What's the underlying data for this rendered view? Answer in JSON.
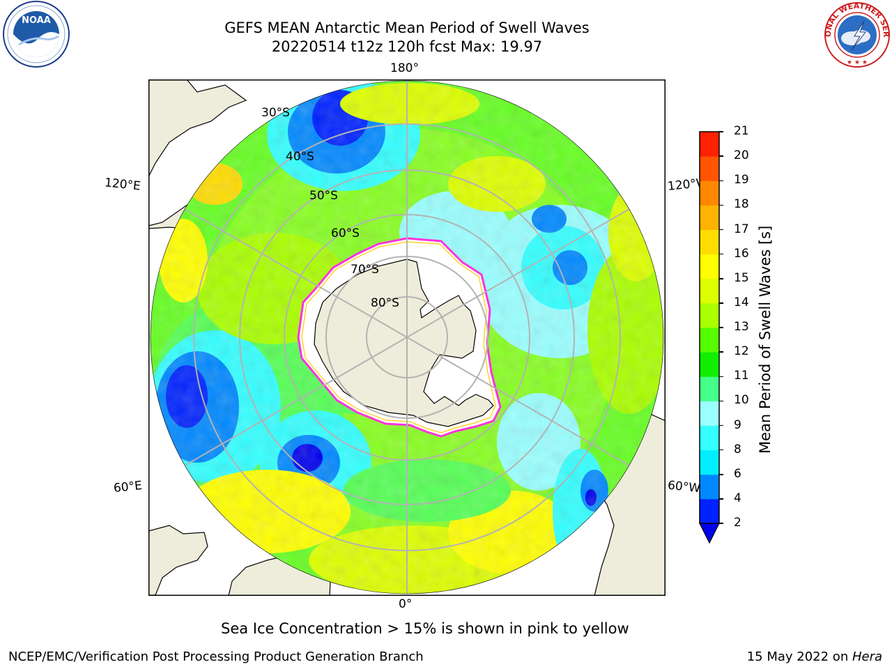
{
  "title": {
    "line1": "GEFS MEAN Antarctic Mean Period of Swell Waves",
    "line2": "20220514 t12z 120h fcst   Max: 19.97"
  },
  "map": {
    "projection": "south-polar-stereographic",
    "lon_labels": [
      "180°",
      "120°E",
      "120°W",
      "60°E",
      "60°W",
      "0°"
    ],
    "lat_labels": [
      "30°S",
      "40°S",
      "50°S",
      "60°S",
      "70°S",
      "80°S"
    ],
    "colors": {
      "land": "#eeecda",
      "grid": "#b3b3b3",
      "ice": "#ffffff",
      "ice_edge": "#ff33dd"
    }
  },
  "colorbar": {
    "label": "Mean Period of Swell Waves [s]",
    "ticks": [
      "2",
      "4",
      "6",
      "8",
      "9",
      "10",
      "11",
      "12",
      "13",
      "14",
      "15",
      "16",
      "17",
      "18",
      "19",
      "20",
      "21"
    ],
    "colors": [
      "#0022ff",
      "#0088ff",
      "#00eeff",
      "#33ffff",
      "#99ffff",
      "#44ff88",
      "#11ee00",
      "#55ff00",
      "#aaff00",
      "#ddff00",
      "#ffff00",
      "#ffdd00",
      "#ffb300",
      "#ff8800",
      "#ff5500",
      "#ff2200"
    ],
    "extend_below_color": "#0000ee"
  },
  "caption": "Sea Ice Concentration > 15% is shown in pink to yellow",
  "footer": {
    "left": "NCEP/EMC/Verification Post Processing Product Generation Branch",
    "right_prefix": "15 May 2022 on ",
    "right_host": "Hera"
  },
  "logos": {
    "left": "NOAA",
    "right_top": "NATIONAL WEATHER SERVICE"
  }
}
